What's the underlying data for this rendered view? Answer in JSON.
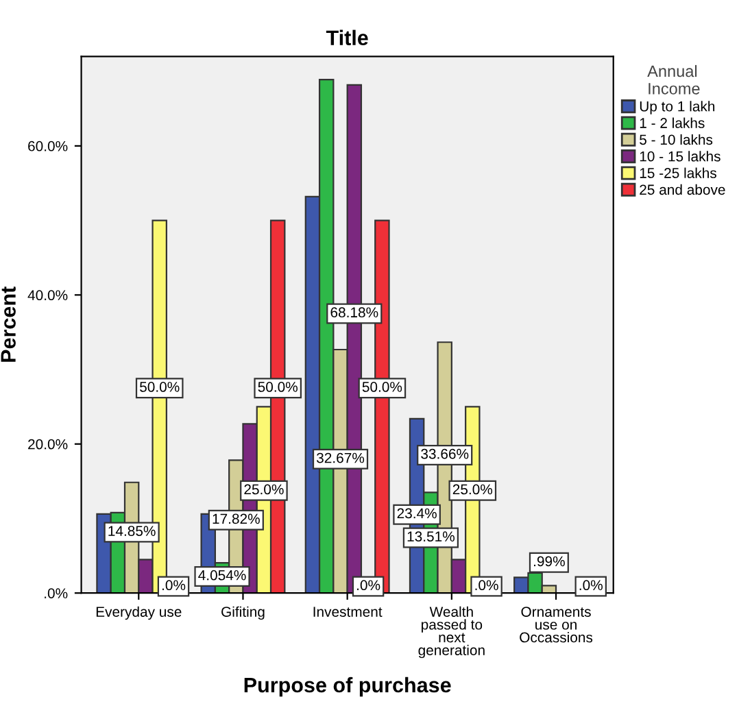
{
  "chart_data": {
    "type": "bar",
    "title": "Title",
    "xlabel": "Purpose of purchase",
    "ylabel": "Percent",
    "legend_title": "Annual\nIncome",
    "legend": "right",
    "categories": [
      "Everyday use",
      "Gifiting",
      "Investment",
      "Wealth\npassed to\nnext\ngeneration",
      "Ornaments\nuse on\nOccassions"
    ],
    "series": [
      {
        "name": "Up to 1 lakh",
        "color": "#3e58ac",
        "values": [
          10.6,
          10.6,
          53.2,
          23.4,
          2.1
        ],
        "value_labels": [
          null,
          null,
          null,
          "23.4%",
          null
        ]
      },
      {
        "name": "1 - 2 lakhs",
        "color": "#2eb848",
        "values": [
          10.8,
          4.054,
          68.9,
          13.51,
          2.7
        ],
        "value_labels": [
          null,
          "4.054%",
          null,
          "13.51%",
          null
        ]
      },
      {
        "name": "5 - 10 lakhs",
        "color": "#d3ce97",
        "values": [
          14.85,
          17.82,
          32.67,
          33.66,
          0.99
        ],
        "value_labels": [
          "14.85%",
          "17.82%",
          "32.67%",
          "33.66%",
          ".99%"
        ]
      },
      {
        "name": "10 - 15 lakhs",
        "color": "#7b287f",
        "values": [
          4.5,
          22.7,
          68.18,
          4.5,
          0
        ],
        "value_labels": [
          null,
          null,
          "68.18%",
          null,
          null
        ]
      },
      {
        "name": "15 -25 lakhs",
        "color": "#fbf873",
        "values": [
          50.0,
          25.0,
          0,
          25.0,
          0
        ],
        "value_labels": [
          "50.0%",
          "25.0%",
          ".0%",
          "25.0%",
          null
        ]
      },
      {
        "name": "25 and above",
        "color": "#ef3038",
        "values": [
          0,
          50.0,
          50.0,
          0,
          0
        ],
        "value_labels": [
          ".0%",
          "50.0%",
          "50.0%",
          ".0%",
          ".0%"
        ]
      }
    ],
    "ylim": [
      0,
      72
    ],
    "yticks": [
      {
        "value": 0,
        "label": ".0%"
      },
      {
        "value": 20,
        "label": "20.0%"
      },
      {
        "value": 40,
        "label": "40.0%"
      },
      {
        "value": 60,
        "label": "60.0%"
      }
    ],
    "grid": false
  }
}
